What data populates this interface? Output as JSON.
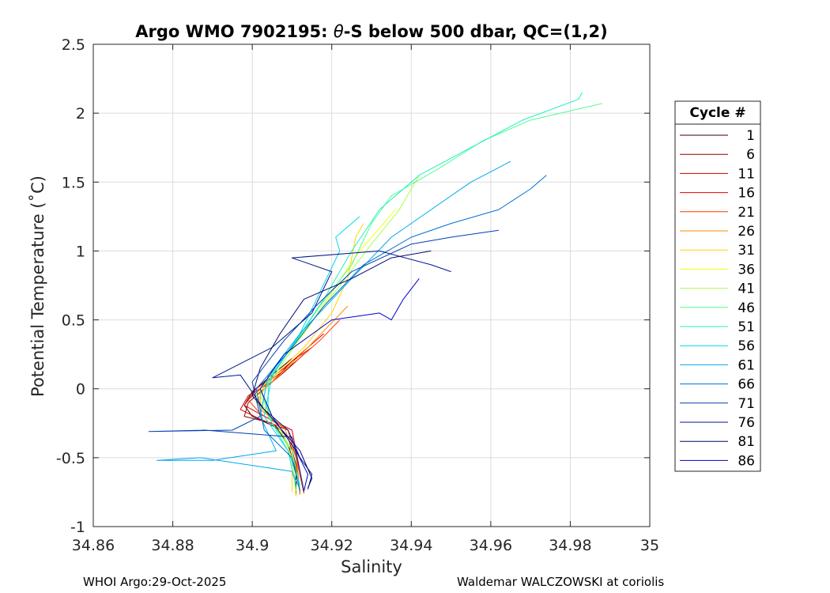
{
  "chart_data": {
    "type": "line",
    "title": "Argo WMO 7902195: θ-S below 500 dbar,  QC=(1,2)",
    "title_prefix": "Argo WMO 7902195: ",
    "title_theta": "θ",
    "title_suffix": "-S below 500 dbar,  QC=(1,2)",
    "xlabel": "Salinity",
    "ylabel": "Potential Temperature (˚C)",
    "xlim": [
      34.86,
      35.0
    ],
    "ylim": [
      -1.0,
      2.5
    ],
    "xticks": [
      34.86,
      34.88,
      34.9,
      34.92,
      34.94,
      34.96,
      34.98,
      35
    ],
    "xtick_labels": [
      "34.86",
      "34.88",
      "34.9",
      "34.92",
      "34.94",
      "34.96",
      "34.98",
      "35"
    ],
    "yticks": [
      -1,
      -0.5,
      0,
      0.5,
      1,
      1.5,
      2,
      2.5
    ],
    "ytick_labels": [
      "-1",
      "-0.5",
      "0",
      "0.5",
      "1",
      "1.5",
      "2",
      "2.5"
    ],
    "grid": true,
    "legend": {
      "title": "Cycle #",
      "placement": "right-outside",
      "entries": [
        "1",
        "6",
        "11",
        "16",
        "21",
        "26",
        "31",
        "36",
        "41",
        "46",
        "51",
        "56",
        "61",
        "66",
        "71",
        "76",
        "81",
        "86"
      ],
      "colors": [
        "#3a0000",
        "#8c0000",
        "#c80000",
        "#e40000",
        "#ff3a00",
        "#ff8c00",
        "#ffd400",
        "#f0ff10",
        "#a8ff50",
        "#50ff90",
        "#20f0c0",
        "#00d8e8",
        "#00a8f0",
        "#0070d0",
        "#0040b0",
        "#001890",
        "#000870",
        "#0000c8"
      ]
    },
    "series": [
      {
        "name": "1",
        "color": "#3a0000",
        "points": [
          [
            -0.78,
            34.911
          ],
          [
            -0.6,
            34.911
          ],
          [
            -0.4,
            34.909
          ],
          [
            -0.28,
            34.906
          ],
          [
            -0.2,
            34.9
          ],
          [
            -0.12,
            34.898
          ],
          [
            -0.02,
            34.9
          ],
          [
            0.1,
            34.905
          ],
          [
            0.22,
            34.91
          ]
        ]
      },
      {
        "name": "6",
        "color": "#8c0000",
        "points": [
          [
            -0.76,
            34.912
          ],
          [
            -0.55,
            34.911
          ],
          [
            -0.35,
            34.909
          ],
          [
            -0.25,
            34.905
          ],
          [
            -0.2,
            34.898
          ],
          [
            -0.1,
            34.899
          ],
          [
            0.0,
            34.903
          ],
          [
            0.12,
            34.908
          ],
          [
            0.25,
            34.913
          ]
        ]
      },
      {
        "name": "11",
        "color": "#c80000",
        "points": [
          [
            -0.75,
            34.912
          ],
          [
            -0.5,
            34.911
          ],
          [
            -0.3,
            34.909
          ],
          [
            -0.22,
            34.902
          ],
          [
            -0.15,
            34.897
          ],
          [
            -0.05,
            34.899
          ],
          [
            0.05,
            34.905
          ],
          [
            0.2,
            34.91
          ],
          [
            0.3,
            34.915
          ]
        ]
      },
      {
        "name": "16",
        "color": "#e40000",
        "points": [
          [
            -0.74,
            34.913
          ],
          [
            -0.45,
            34.911
          ],
          [
            -0.3,
            34.91
          ],
          [
            -0.2,
            34.903
          ],
          [
            -0.12,
            34.898
          ],
          [
            0.0,
            34.901
          ],
          [
            0.15,
            34.908
          ],
          [
            0.3,
            34.914
          ],
          [
            0.4,
            34.918
          ]
        ]
      },
      {
        "name": "21",
        "color": "#ff3a00",
        "points": [
          [
            -0.76,
            34.913
          ],
          [
            -0.5,
            34.911
          ],
          [
            -0.3,
            34.909
          ],
          [
            -0.18,
            34.902
          ],
          [
            -0.08,
            34.899
          ],
          [
            0.05,
            34.904
          ],
          [
            0.2,
            34.911
          ],
          [
            0.35,
            34.917
          ],
          [
            0.5,
            34.922
          ]
        ]
      },
      {
        "name": "26",
        "color": "#ff8c00",
        "points": [
          [
            -0.77,
            34.912
          ],
          [
            -0.5,
            34.911
          ],
          [
            -0.28,
            34.908
          ],
          [
            -0.15,
            34.902
          ],
          [
            -0.03,
            34.902
          ],
          [
            0.1,
            34.907
          ],
          [
            0.3,
            34.914
          ],
          [
            0.45,
            34.919
          ],
          [
            0.6,
            34.924
          ]
        ]
      },
      {
        "name": "31",
        "color": "#ffd400",
        "points": [
          [
            -0.75,
            34.91
          ],
          [
            -0.5,
            34.91
          ],
          [
            -0.28,
            34.907
          ],
          [
            -0.1,
            34.901
          ],
          [
            0.05,
            34.904
          ],
          [
            0.3,
            34.913
          ],
          [
            0.55,
            34.92
          ],
          [
            0.8,
            34.924
          ],
          [
            1.1,
            34.926
          ],
          [
            1.2,
            34.928
          ]
        ]
      },
      {
        "name": "36",
        "color": "#f0ff10",
        "points": [
          [
            -0.78,
            34.911
          ],
          [
            -0.45,
            34.91
          ],
          [
            -0.25,
            34.906
          ],
          [
            -0.05,
            34.901
          ],
          [
            0.15,
            34.906
          ],
          [
            0.4,
            34.913
          ],
          [
            0.7,
            34.92
          ],
          [
            1.0,
            34.927
          ],
          [
            1.2,
            34.933
          ],
          [
            1.3,
            34.936
          ]
        ]
      },
      {
        "name": "41",
        "color": "#a8ff50",
        "points": [
          [
            -0.74,
            34.911
          ],
          [
            -0.45,
            34.91
          ],
          [
            -0.25,
            34.906
          ],
          [
            -0.05,
            34.902
          ],
          [
            0.2,
            34.908
          ],
          [
            0.45,
            34.914
          ],
          [
            0.75,
            34.922
          ],
          [
            1.05,
            34.93
          ],
          [
            1.3,
            34.937
          ],
          [
            1.55,
            34.942
          ]
        ]
      },
      {
        "name": "46",
        "color": "#50ff90",
        "points": [
          [
            -0.72,
            34.912
          ],
          [
            -0.45,
            34.91
          ],
          [
            -0.25,
            34.905
          ],
          [
            0.0,
            34.902
          ],
          [
            0.3,
            34.91
          ],
          [
            0.6,
            34.917
          ],
          [
            0.9,
            34.925
          ],
          [
            1.2,
            34.93
          ],
          [
            1.4,
            34.935
          ],
          [
            1.6,
            34.947
          ],
          [
            1.8,
            34.958
          ],
          [
            1.95,
            34.97
          ],
          [
            2.07,
            34.988
          ]
        ]
      },
      {
        "name": "51",
        "color": "#20f0c0",
        "points": [
          [
            -0.72,
            34.911
          ],
          [
            -0.45,
            34.909
          ],
          [
            -0.2,
            34.904
          ],
          [
            0.05,
            34.904
          ],
          [
            0.35,
            34.911
          ],
          [
            0.65,
            34.918
          ],
          [
            1.0,
            34.925
          ],
          [
            1.3,
            34.932
          ],
          [
            1.55,
            34.942
          ],
          [
            1.75,
            34.955
          ],
          [
            1.95,
            34.968
          ],
          [
            2.1,
            34.982
          ],
          [
            2.15,
            34.983
          ]
        ]
      },
      {
        "name": "56",
        "color": "#00d8e8",
        "points": [
          [
            -0.7,
            34.912
          ],
          [
            -0.45,
            34.909
          ],
          [
            -0.2,
            34.903
          ],
          [
            0.1,
            34.905
          ],
          [
            0.4,
            34.912
          ],
          [
            0.7,
            34.917
          ],
          [
            1.0,
            34.922
          ],
          [
            1.1,
            34.921
          ],
          [
            1.25,
            34.927
          ]
        ]
      },
      {
        "name": "61",
        "color": "#00a8f0",
        "points": [
          [
            -0.73,
            34.912
          ],
          [
            -0.6,
            34.91
          ],
          [
            -0.5,
            34.887
          ],
          [
            -0.52,
            34.876
          ],
          [
            -0.52,
            34.89
          ],
          [
            -0.45,
            34.906
          ],
          [
            -0.2,
            34.902
          ],
          [
            0.1,
            34.904
          ],
          [
            0.4,
            34.912
          ],
          [
            0.8,
            34.925
          ],
          [
            1.1,
            34.935
          ],
          [
            1.3,
            34.945
          ],
          [
            1.5,
            34.955
          ],
          [
            1.65,
            34.965
          ]
        ]
      },
      {
        "name": "66",
        "color": "#0070d0",
        "points": [
          [
            -0.74,
            34.912
          ],
          [
            -0.5,
            34.91
          ],
          [
            -0.3,
            34.903
          ],
          [
            0.0,
            34.901
          ],
          [
            0.3,
            34.91
          ],
          [
            0.6,
            34.918
          ],
          [
            0.9,
            34.928
          ],
          [
            1.1,
            34.94
          ],
          [
            1.2,
            34.95
          ],
          [
            1.3,
            34.962
          ],
          [
            1.45,
            34.97
          ],
          [
            1.55,
            34.974
          ]
        ]
      },
      {
        "name": "71",
        "color": "#0040b0",
        "points": [
          [
            -0.75,
            34.913
          ],
          [
            -0.6,
            34.912
          ],
          [
            -0.35,
            34.91
          ],
          [
            -0.3,
            34.888
          ],
          [
            -0.31,
            34.874
          ],
          [
            -0.3,
            34.895
          ],
          [
            -0.2,
            34.902
          ],
          [
            0.05,
            34.9
          ],
          [
            0.35,
            34.908
          ],
          [
            0.6,
            34.916
          ],
          [
            0.85,
            34.925
          ],
          [
            1.05,
            34.94
          ],
          [
            1.1,
            34.95
          ],
          [
            1.15,
            34.962
          ]
        ]
      },
      {
        "name": "76",
        "color": "#001890",
        "points": [
          [
            -0.73,
            34.914
          ],
          [
            -0.62,
            34.915
          ],
          [
            -0.5,
            34.912
          ],
          [
            -0.3,
            34.909
          ],
          [
            -0.15,
            34.903
          ],
          [
            0.1,
            34.897
          ],
          [
            0.08,
            34.89
          ],
          [
            0.3,
            34.905
          ],
          [
            0.55,
            34.915
          ],
          [
            0.85,
            34.92
          ],
          [
            0.95,
            34.91
          ],
          [
            1.0,
            34.932
          ],
          [
            0.9,
            34.945
          ],
          [
            0.85,
            34.95
          ]
        ]
      },
      {
        "name": "81",
        "color": "#000870",
        "points": [
          [
            -0.72,
            34.914
          ],
          [
            -0.65,
            34.915
          ],
          [
            -0.45,
            34.912
          ],
          [
            -0.25,
            34.906
          ],
          [
            -0.05,
            34.9
          ],
          [
            0.15,
            34.902
          ],
          [
            0.4,
            34.907
          ],
          [
            0.65,
            34.913
          ],
          [
            0.8,
            34.925
          ],
          [
            0.95,
            34.935
          ],
          [
            1.0,
            34.945
          ]
        ]
      },
      {
        "name": "86",
        "color": "#0000c8",
        "points": [
          [
            -0.74,
            34.913
          ],
          [
            -0.62,
            34.914
          ],
          [
            -0.45,
            34.911
          ],
          [
            -0.2,
            34.905
          ],
          [
            0.0,
            34.902
          ],
          [
            0.25,
            34.908
          ],
          [
            0.5,
            34.92
          ],
          [
            0.55,
            34.932
          ],
          [
            0.5,
            34.935
          ],
          [
            0.65,
            34.938
          ],
          [
            0.8,
            34.942
          ]
        ]
      }
    ]
  },
  "footer": {
    "left": "WHOI Argo:29-Oct-2025",
    "right": "Waldemar WALCZOWSKI at coriolis"
  }
}
